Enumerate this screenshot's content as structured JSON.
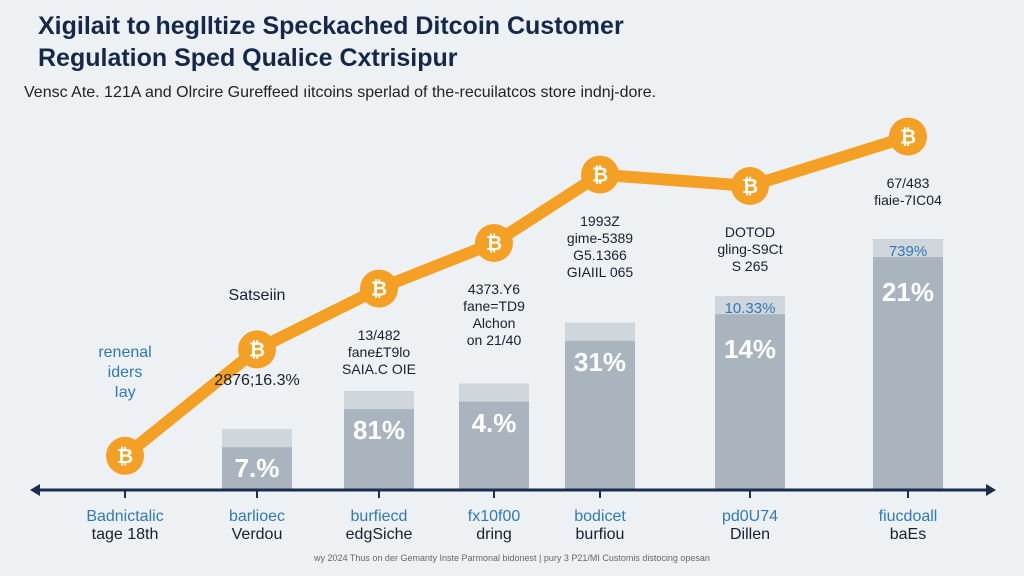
{
  "header": {
    "title_line1": "Xigilait to heglltize Speckached Ditcoin Customer",
    "title_line2": "Regulation Sped Qualice Cxtrisipur",
    "subtitle": "Vensc Ate. 121A and Olrcire Gureffeed ıitcoins sperlad of the-recuilatcos store indnj-dore."
  },
  "footnote": "wy 2024 Thus on der Gemanty Inste Parmonal bidonest | pury 3 P21/MI Customis distocing opesan",
  "colors": {
    "line": "#f4a024",
    "bar": "#a9b4bf",
    "axis": "#1b2d4f",
    "title": "#14284a",
    "label_blue": "#2f79b8"
  },
  "chart_data": {
    "type": "bar+line",
    "title": "Xigilait to heglltize Speckached Ditcoin Customer Regulation Sped Qualice Cxtrisipur",
    "line_icon": "bitcoin-icon",
    "line_values": [
      9,
      37,
      53,
      65,
      83,
      80,
      93
    ],
    "bar_values": [
      null,
      16,
      26,
      28,
      44,
      51,
      66
    ],
    "bar_labels": [
      "",
      "7.%",
      "81%",
      "4.%",
      "31%",
      "14%",
      "21%"
    ],
    "bar_top_labels": [
      "",
      "",
      "",
      "",
      "",
      "10.33%",
      "739%"
    ],
    "annotations": [
      [
        "renenal",
        "iders",
        "Iay"
      ],
      [
        "Satseiin",
        "2876;16.3%"
      ],
      [
        "13/482",
        "fane£T9lo",
        "SAIA.C OIE"
      ],
      [
        "4373.Y6",
        "fane=TD9",
        "Alchon",
        "on 21/40"
      ],
      [
        "1993Z",
        "gime-5389",
        "G5.1366",
        "GIAIIL 065"
      ],
      [
        "DOTOD",
        "gling-S9Ct",
        "S 265"
      ],
      [
        "67/483",
        "fiaie-7IC04"
      ]
    ],
    "categories": [
      [
        "Badnictalic",
        "tage 18th"
      ],
      [
        "barlioec",
        "Verdou"
      ],
      [
        "burfiecd",
        "edgSiche"
      ],
      [
        "fx10f00",
        "dring"
      ],
      [
        "bodicet",
        "burfiou"
      ],
      [
        "pd0U74",
        "Dillen"
      ],
      [
        "fiucdoall",
        "baEs"
      ]
    ]
  }
}
